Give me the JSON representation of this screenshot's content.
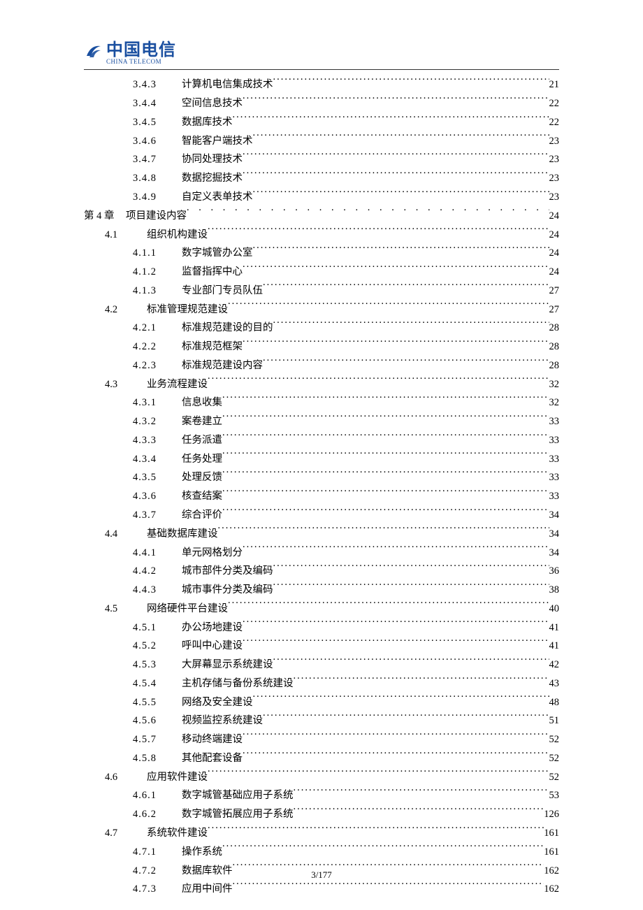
{
  "logo": {
    "cn": "中国电信",
    "en": "CHINA TELECOM",
    "mark_color": "#1a4fa0"
  },
  "footer": {
    "page": "3/177"
  },
  "toc": {
    "entries": [
      {
        "level": 2,
        "num": "3.4.3",
        "title": "计算机电信集成技术",
        "page": "21"
      },
      {
        "level": 2,
        "num": "3.4.4",
        "title": "空间信息技术",
        "page": "22"
      },
      {
        "level": 2,
        "num": "3.4.5",
        "title": "数据库技术",
        "page": "22"
      },
      {
        "level": 2,
        "num": "3.4.6",
        "title": "智能客户端技术",
        "page": "23"
      },
      {
        "level": 2,
        "num": "3.4.7",
        "title": "协同处理技术",
        "page": "23"
      },
      {
        "level": 2,
        "num": "3.4.8",
        "title": "数据挖掘技术",
        "page": "23"
      },
      {
        "level": 2,
        "num": "3.4.9",
        "title": "自定义表单技术",
        "page": "23"
      },
      {
        "level": 0,
        "num": "第 4 章",
        "title": "项目建设内容",
        "page": "24"
      },
      {
        "level": 1,
        "num": "4.1",
        "title": "组织机构建设",
        "page": "24"
      },
      {
        "level": 2,
        "num": "4.1.1",
        "title": "数字城管办公室",
        "page": "24"
      },
      {
        "level": 2,
        "num": "4.1.2",
        "title": "监督指挥中心",
        "page": "24"
      },
      {
        "level": 2,
        "num": "4.1.3",
        "title": "专业部门专员队伍",
        "page": "27"
      },
      {
        "level": 1,
        "num": "4.2",
        "title": "标准管理规范建设",
        "page": "27"
      },
      {
        "level": 2,
        "num": "4.2.1",
        "title": "标准规范建设的目的",
        "page": "28"
      },
      {
        "level": 2,
        "num": "4.2.2",
        "title": "标准规范框架",
        "page": "28"
      },
      {
        "level": 2,
        "num": "4.2.3",
        "title": "标准规范建设内容",
        "page": "28"
      },
      {
        "level": 1,
        "num": "4.3",
        "title": "业务流程建设",
        "page": "32"
      },
      {
        "level": 2,
        "num": "4.3.1",
        "title": "信息收集",
        "page": "32"
      },
      {
        "level": 2,
        "num": "4.3.2",
        "title": "案卷建立",
        "page": "33"
      },
      {
        "level": 2,
        "num": "4.3.3",
        "title": "任务派遣",
        "page": "33"
      },
      {
        "level": 2,
        "num": "4.3.4",
        "title": "任务处理",
        "page": "33"
      },
      {
        "level": 2,
        "num": "4.3.5",
        "title": "处理反馈",
        "page": "33"
      },
      {
        "level": 2,
        "num": "4.3.6",
        "title": "核查结案",
        "page": "33"
      },
      {
        "level": 2,
        "num": "4.3.7",
        "title": "综合评价",
        "page": "34"
      },
      {
        "level": 1,
        "num": "4.4",
        "title": "基础数据库建设",
        "page": "34"
      },
      {
        "level": 2,
        "num": "4.4.1",
        "title": "单元网格划分",
        "page": "34"
      },
      {
        "level": 2,
        "num": "4.4.2",
        "title": "城市部件分类及编码",
        "page": "36"
      },
      {
        "level": 2,
        "num": "4.4.3",
        "title": "城市事件分类及编码",
        "page": "38"
      },
      {
        "level": 1,
        "num": "4.5",
        "title": "网络硬件平台建设",
        "page": "40"
      },
      {
        "level": 2,
        "num": "4.5.1",
        "title": "办公场地建设",
        "page": "41"
      },
      {
        "level": 2,
        "num": "4.5.2",
        "title": "呼叫中心建设",
        "page": "41"
      },
      {
        "level": 2,
        "num": "4.5.3",
        "title": "大屏幕显示系统建设",
        "page": "42"
      },
      {
        "level": 2,
        "num": "4.5.4",
        "title": "主机存储与备份系统建设",
        "page": "43"
      },
      {
        "level": 2,
        "num": "4.5.5",
        "title": "网络及安全建设",
        "page": "48"
      },
      {
        "level": 2,
        "num": "4.5.6",
        "title": "视频监控系统建设",
        "page": "51"
      },
      {
        "level": 2,
        "num": "4.5.7",
        "title": "移动终端建设",
        "page": "52"
      },
      {
        "level": 2,
        "num": "4.5.8",
        "title": "其他配套设备",
        "page": "52"
      },
      {
        "level": 1,
        "num": "4.6",
        "title": "应用软件建设",
        "page": "52"
      },
      {
        "level": 2,
        "num": "4.6.1",
        "title": "数字城管基础应用子系统",
        "page": "53"
      },
      {
        "level": 2,
        "num": "4.6.2",
        "title": "数字城管拓展应用子系统",
        "page": "126"
      },
      {
        "level": 1,
        "num": "4.7",
        "title": "系统软件建设",
        "page": "161"
      },
      {
        "level": 2,
        "num": "4.7.1",
        "title": "操作系统",
        "page": "161"
      },
      {
        "level": 2,
        "num": "4.7.2",
        "title": "数据库软件",
        "page": "162"
      },
      {
        "level": 2,
        "num": "4.7.3",
        "title": "应用中间件",
        "page": "162"
      }
    ]
  }
}
